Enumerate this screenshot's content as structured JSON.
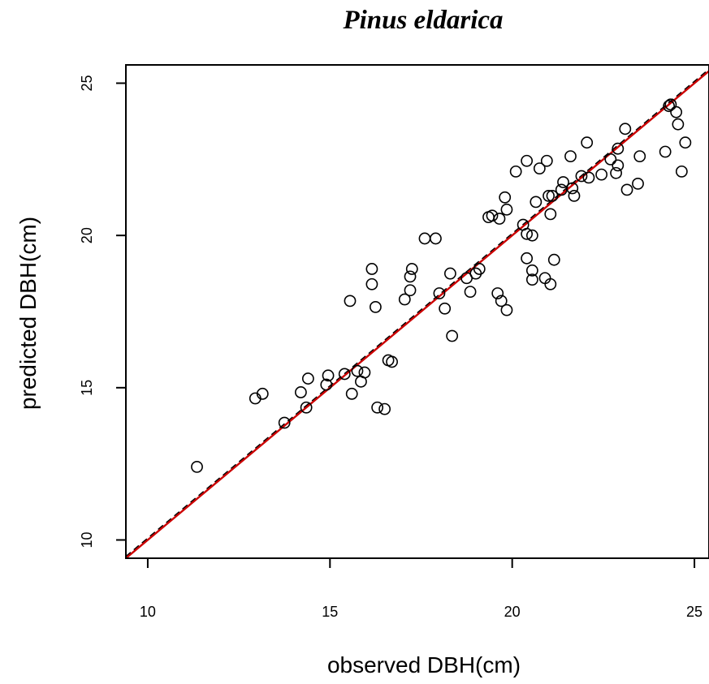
{
  "chart_data": {
    "type": "scatter",
    "title": "Pinus eldarica",
    "xlabel": "observed DBH(cm)",
    "ylabel": "predicted DBH(cm)",
    "xlim": [
      9.4,
      25.4
    ],
    "ylim": [
      9.4,
      25.6
    ],
    "xticks": [
      10,
      15,
      20,
      25
    ],
    "yticks": [
      10,
      15,
      20,
      25
    ],
    "grid": false,
    "lines": [
      {
        "style": "dashed",
        "color": "#000000",
        "intercept": 0.05,
        "slope": 1.0
      },
      {
        "style": "solid",
        "color": "#cc0000",
        "intercept": 0.0,
        "slope": 1.0
      }
    ],
    "points": [
      [
        11.35,
        12.4
      ],
      [
        12.95,
        14.65
      ],
      [
        13.15,
        14.8
      ],
      [
        13.75,
        13.85
      ],
      [
        14.2,
        14.85
      ],
      [
        14.35,
        14.35
      ],
      [
        14.4,
        15.3
      ],
      [
        14.9,
        15.1
      ],
      [
        14.95,
        15.4
      ],
      [
        15.4,
        15.45
      ],
      [
        15.6,
        14.8
      ],
      [
        15.75,
        15.55
      ],
      [
        15.85,
        15.2
      ],
      [
        15.95,
        15.5
      ],
      [
        16.3,
        14.35
      ],
      [
        16.5,
        14.3
      ],
      [
        16.6,
        15.9
      ],
      [
        16.7,
        15.85
      ],
      [
        15.55,
        17.85
      ],
      [
        16.15,
        18.4
      ],
      [
        16.15,
        18.9
      ],
      [
        16.25,
        17.65
      ],
      [
        17.05,
        17.9
      ],
      [
        17.2,
        18.2
      ],
      [
        17.2,
        18.65
      ],
      [
        17.25,
        18.9
      ],
      [
        17.6,
        19.9
      ],
      [
        17.9,
        19.9
      ],
      [
        18.0,
        18.1
      ],
      [
        18.15,
        17.6
      ],
      [
        18.3,
        18.75
      ],
      [
        18.35,
        16.7
      ],
      [
        18.75,
        18.6
      ],
      [
        18.85,
        18.15
      ],
      [
        19.0,
        18.75
      ],
      [
        19.1,
        18.9
      ],
      [
        19.35,
        20.6
      ],
      [
        19.45,
        20.65
      ],
      [
        19.6,
        18.1
      ],
      [
        19.65,
        20.55
      ],
      [
        19.7,
        17.85
      ],
      [
        19.8,
        21.25
      ],
      [
        19.85,
        20.85
      ],
      [
        19.85,
        17.55
      ],
      [
        20.1,
        22.1
      ],
      [
        20.3,
        20.35
      ],
      [
        20.4,
        22.45
      ],
      [
        20.4,
        20.05
      ],
      [
        20.4,
        19.25
      ],
      [
        20.55,
        20.0
      ],
      [
        20.55,
        18.85
      ],
      [
        20.55,
        18.55
      ],
      [
        20.65,
        21.1
      ],
      [
        20.75,
        22.2
      ],
      [
        20.9,
        18.6
      ],
      [
        20.95,
        22.45
      ],
      [
        21.0,
        21.3
      ],
      [
        21.05,
        18.4
      ],
      [
        21.05,
        20.7
      ],
      [
        21.1,
        21.3
      ],
      [
        21.15,
        19.2
      ],
      [
        21.35,
        21.5
      ],
      [
        21.4,
        21.75
      ],
      [
        21.6,
        22.6
      ],
      [
        21.65,
        21.55
      ],
      [
        21.7,
        21.3
      ],
      [
        21.9,
        21.95
      ],
      [
        22.05,
        23.05
      ],
      [
        22.1,
        21.9
      ],
      [
        22.45,
        22.0
      ],
      [
        22.7,
        22.5
      ],
      [
        22.85,
        22.05
      ],
      [
        22.9,
        22.85
      ],
      [
        22.9,
        22.3
      ],
      [
        23.1,
        23.5
      ],
      [
        23.15,
        21.5
      ],
      [
        23.45,
        21.7
      ],
      [
        23.5,
        22.6
      ],
      [
        24.2,
        22.75
      ],
      [
        24.3,
        24.25
      ],
      [
        24.35,
        24.3
      ],
      [
        24.5,
        24.05
      ],
      [
        24.55,
        23.65
      ],
      [
        24.65,
        22.1
      ],
      [
        24.75,
        23.05
      ]
    ]
  }
}
